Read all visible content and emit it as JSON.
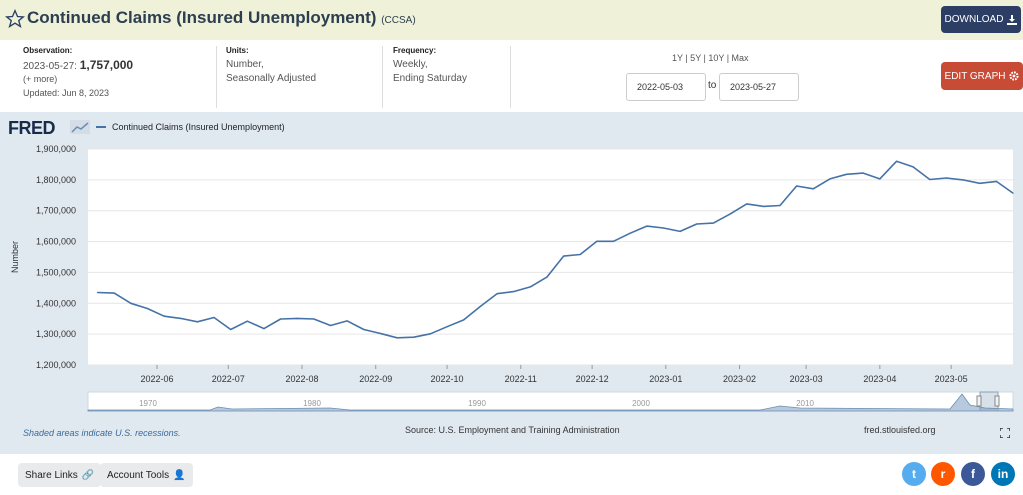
{
  "header": {
    "title": "Continued Claims (Insured Unemployment)",
    "code": "(CCSA)",
    "download_label": "DOWNLOAD",
    "star_icon": "star-outline-icon",
    "download_icon": "download-icon"
  },
  "info": {
    "observation_label": "Observation:",
    "observation_date": "2023-05-27:",
    "observation_value": "1,757,000",
    "more": "(+ more)",
    "updated": "Updated: Jun 8, 2023",
    "units_label": "Units:",
    "units_line1": "Number,",
    "units_line2": "Seasonally Adjusted",
    "frequency_label": "Frequency:",
    "frequency_line1": "Weekly,",
    "frequency_line2": "Ending Saturday",
    "ranges": "1Y | 5Y | 10Y | Max",
    "date_start": "2022-05-03",
    "to_label": "to",
    "date_end": "2023-05-27",
    "edit_label": "EDIT GRAPH",
    "edit_icon": "gear-icon"
  },
  "chart_panel": {
    "logo": "FRED",
    "recession_note": "Shaded areas indicate U.S. recessions.",
    "source": "Source: U.S. Employment and Training Administration",
    "site": "fred.stlouisfed.org",
    "expand_icon": "fullscreen-icon"
  },
  "footer": {
    "share_label": "Share Links",
    "account_label": "Account Tools",
    "share_icon": "link-icon",
    "account_icon": "user-icon",
    "social_icons": [
      "twitter-icon",
      "reddit-icon",
      "facebook-icon",
      "linkedin-icon"
    ],
    "social_colors": [
      "#55acee",
      "#ff5700",
      "#3b5998",
      "#0077b5"
    ]
  },
  "chart_data": {
    "type": "line",
    "legend": "Continued Claims (Insured Unemployment)",
    "ylabel": "Number",
    "ylim": [
      1200000,
      1900000
    ],
    "yticks": [
      1200000,
      1300000,
      1400000,
      1500000,
      1600000,
      1700000,
      1800000,
      1900000
    ],
    "ytick_labels": [
      "1,200,000",
      "1,300,000",
      "1,400,000",
      "1,500,000",
      "1,600,000",
      "1,700,000",
      "1,800,000",
      "1,900,000"
    ],
    "xlim": [
      "2022-05-03",
      "2023-05-27"
    ],
    "xticks": [
      "2022-06-01",
      "2022-07-01",
      "2022-08-01",
      "2022-09-01",
      "2022-10-01",
      "2022-11-01",
      "2022-12-01",
      "2023-01-01",
      "2023-02-01",
      "2023-03-01",
      "2023-04-01",
      "2023-05-01"
    ],
    "xtick_labels": [
      "2022-06",
      "2022-07",
      "2022-08",
      "2022-09",
      "2022-10",
      "2022-11",
      "2022-12",
      "2023-01",
      "2023-02",
      "2023-03",
      "2023-04",
      "2023-05"
    ],
    "grid": true,
    "color": "#4572a7",
    "series": [
      {
        "name": "Continued Claims (Insured Unemployment)",
        "x": [
          "2022-05-07",
          "2022-05-14",
          "2022-05-21",
          "2022-05-28",
          "2022-06-04",
          "2022-06-11",
          "2022-06-18",
          "2022-06-25",
          "2022-07-02",
          "2022-07-09",
          "2022-07-16",
          "2022-07-23",
          "2022-07-30",
          "2022-08-06",
          "2022-08-13",
          "2022-08-20",
          "2022-08-27",
          "2022-09-03",
          "2022-09-10",
          "2022-09-17",
          "2022-09-24",
          "2022-10-01",
          "2022-10-08",
          "2022-10-15",
          "2022-10-22",
          "2022-10-29",
          "2022-11-05",
          "2022-11-12",
          "2022-11-19",
          "2022-11-26",
          "2022-12-03",
          "2022-12-10",
          "2022-12-17",
          "2022-12-24",
          "2022-12-31",
          "2023-01-07",
          "2023-01-14",
          "2023-01-21",
          "2023-01-28",
          "2023-02-04",
          "2023-02-11",
          "2023-02-18",
          "2023-02-25",
          "2023-03-04",
          "2023-03-11",
          "2023-03-18",
          "2023-03-25",
          "2023-04-01",
          "2023-04-08",
          "2023-04-15",
          "2023-04-22",
          "2023-04-29",
          "2023-05-06",
          "2023-05-13",
          "2023-05-20",
          "2023-05-27"
        ],
        "values": [
          1435000,
          1433000,
          1400000,
          1383000,
          1358000,
          1351000,
          1340000,
          1354000,
          1315000,
          1342000,
          1318000,
          1349000,
          1351000,
          1349000,
          1328000,
          1343000,
          1315000,
          1302000,
          1288000,
          1290000,
          1301000,
          1324000,
          1346000,
          1390000,
          1431000,
          1438000,
          1453000,
          1485000,
          1553000,
          1558000,
          1601000,
          1601000,
          1627000,
          1650000,
          1644000,
          1633000,
          1657000,
          1660000,
          1689000,
          1722000,
          1714000,
          1717000,
          1780000,
          1771000,
          1803000,
          1818000,
          1822000,
          1803000,
          1860000,
          1842000,
          1801000,
          1806000,
          1800000,
          1789000,
          1795000,
          1757000
        ]
      }
    ]
  }
}
